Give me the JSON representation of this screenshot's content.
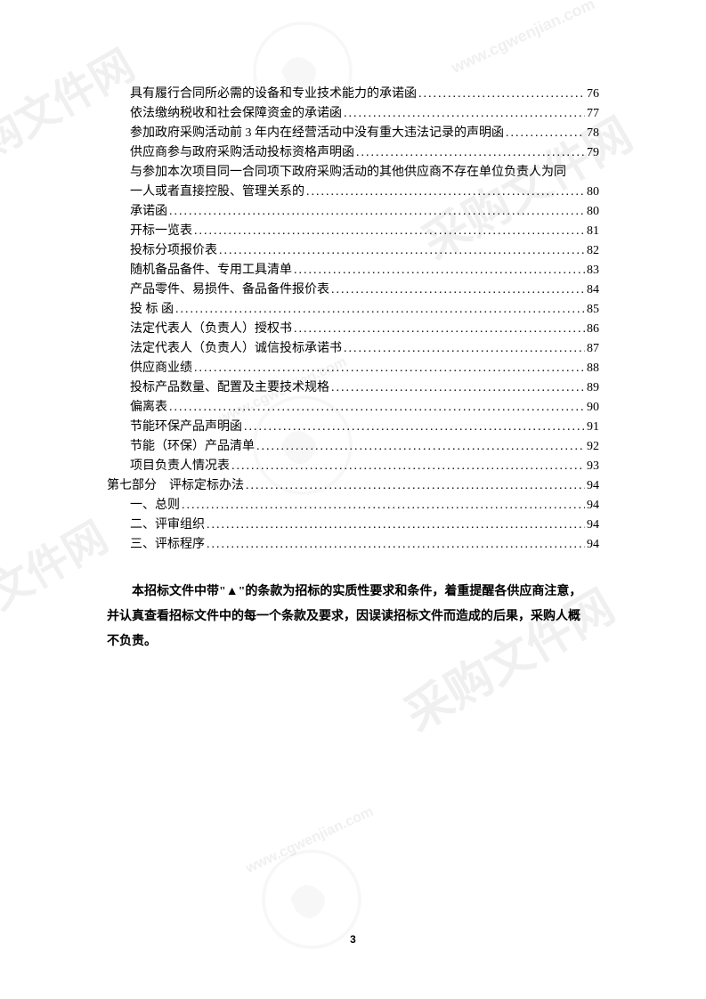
{
  "watermark_text": "采购文件网",
  "watermark_url": "www.cgwenjian.com",
  "toc": {
    "items": [
      {
        "level": 2,
        "title": "具有履行合同所必需的设备和专业技术能力的承诺函",
        "page": "76"
      },
      {
        "level": 2,
        "title": "依法缴纳税收和社会保障资金的承诺函",
        "page": "77"
      },
      {
        "level": 2,
        "title": "参加政府采购活动前 3 年内在经营活动中没有重大违法记录的声明函",
        "page": "78"
      },
      {
        "level": 2,
        "title": "供应商参与政府采购活动投标资格声明函",
        "page": "79"
      },
      {
        "level": 2,
        "title_wrap1": "与参加本次项目同一合同项下政府采购活动的其他供应商不存在单位负责人为同",
        "title_wrap2": "一人或者直接控股、管理关系的",
        "page": "80",
        "wrap": true
      },
      {
        "level": 2,
        "title": "承诺函",
        "page": "80"
      },
      {
        "level": 2,
        "title": "开标一览表",
        "page": "81"
      },
      {
        "level": 2,
        "title": "投标分项报价表",
        "page": "82"
      },
      {
        "level": 2,
        "title": "随机备品备件、专用工具清单",
        "page": "83"
      },
      {
        "level": 2,
        "title": "产品零件、易损件、备品备件报价表",
        "page": "84"
      },
      {
        "level": 2,
        "title": "投 标 函",
        "page": "85"
      },
      {
        "level": 2,
        "title": "法定代表人（负责人）授权书",
        "page": "86"
      },
      {
        "level": 2,
        "title": "法定代表人（负责人）诚信投标承诺书",
        "page": "87"
      },
      {
        "level": 2,
        "title": "供应商业绩",
        "page": "88"
      },
      {
        "level": 2,
        "title": "投标产品数量、配置及主要技术规格",
        "page": "89"
      },
      {
        "level": 2,
        "title": "偏离表",
        "page": "90"
      },
      {
        "level": 2,
        "title": "节能环保产品声明函",
        "page": "91"
      },
      {
        "level": 2,
        "title": "节能（环保）产品清单",
        "page": "92"
      },
      {
        "level": 2,
        "title": "项目负责人情况表",
        "page": "93"
      },
      {
        "level": 1,
        "title": "第七部分　评标定标办法",
        "page": "94"
      },
      {
        "level": 2,
        "title": "一、总则",
        "page": "94"
      },
      {
        "level": 2,
        "title": "二、评审组织",
        "page": "94"
      },
      {
        "level": 2,
        "title": "三、评标程序",
        "page": "94"
      }
    ]
  },
  "note": {
    "line1": "本招标文件中带\"▲\"的条款为招标的实质性要求和条件，着重提醒各供应商注意，",
    "line2": "并认真查看招标文件中的每一个条款及要求，因误读招标文件而造成的后果，采购人概",
    "line3": "不负责。"
  },
  "page_number": "3",
  "colors": {
    "text": "#000000",
    "background": "#ffffff",
    "watermark": "#f0f0f0"
  }
}
